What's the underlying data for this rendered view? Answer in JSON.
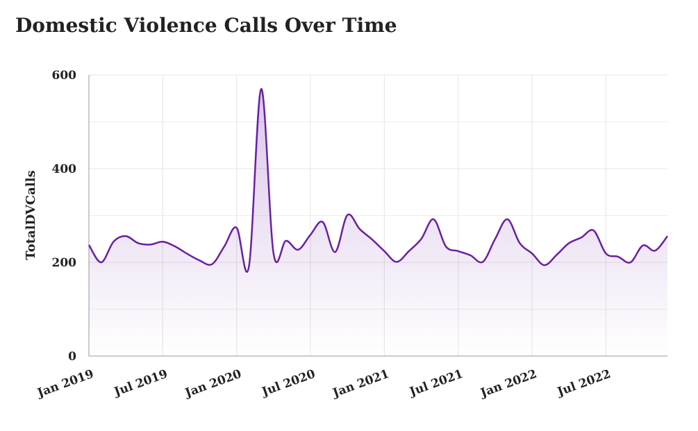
{
  "chart_data": {
    "type": "line",
    "title": "Domestic Violence Calls Over Time",
    "y_label": "TotalDVCalls",
    "x": [
      "2019-01",
      "2019-02",
      "2019-03",
      "2019-04",
      "2019-05",
      "2019-06",
      "2019-07",
      "2019-08",
      "2019-09",
      "2019-10",
      "2019-11",
      "2019-12",
      "2020-01",
      "2020-02",
      "2020-03",
      "2020-04",
      "2020-05",
      "2020-06",
      "2020-07",
      "2020-08",
      "2020-09",
      "2020-10",
      "2020-11",
      "2020-12",
      "2021-01",
      "2021-02",
      "2021-03",
      "2021-04",
      "2021-05",
      "2021-06",
      "2021-07",
      "2021-08",
      "2021-09",
      "2021-10",
      "2021-11",
      "2021-12",
      "2022-01",
      "2022-02",
      "2022-03",
      "2022-04",
      "2022-05",
      "2022-06",
      "2022-07",
      "2022-08",
      "2022-09",
      "2022-10",
      "2022-11",
      "2022-12"
    ],
    "series": [
      {
        "name": "TotalDVCalls",
        "color": "#6b1fa3",
        "values": [
          237,
          200,
          244,
          256,
          241,
          238,
          244,
          234,
          218,
          204,
          196,
          234,
          274,
          191,
          570,
          219,
          246,
          227,
          259,
          286,
          222,
          301,
          271,
          249,
          224,
          201,
          224,
          250,
          292,
          234,
          224,
          215,
          201,
          250,
          292,
          241,
          219,
          194,
          216,
          241,
          253,
          268,
          219,
          212,
          200,
          236,
          225,
          256
        ]
      }
    ],
    "xlim": [
      "2019-01",
      "2022-12"
    ],
    "xticks": [
      {
        "value": "2019-01",
        "label": "Jan 2019"
      },
      {
        "value": "2019-07",
        "label": "Jul 2019"
      },
      {
        "value": "2020-01",
        "label": "Jan 2020"
      },
      {
        "value": "2020-07",
        "label": "Jul 2020"
      },
      {
        "value": "2021-01",
        "label": "Jan 2021"
      },
      {
        "value": "2021-07",
        "label": "Jul 2021"
      },
      {
        "value": "2022-01",
        "label": "Jan 2022"
      },
      {
        "value": "2022-07",
        "label": "Jul 2022"
      }
    ],
    "ylim": [
      0,
      600
    ],
    "yticks": [
      0,
      200,
      400,
      600
    ],
    "minor_yticks": [
      100,
      300,
      500
    ],
    "grid": true,
    "area_fill": true
  }
}
